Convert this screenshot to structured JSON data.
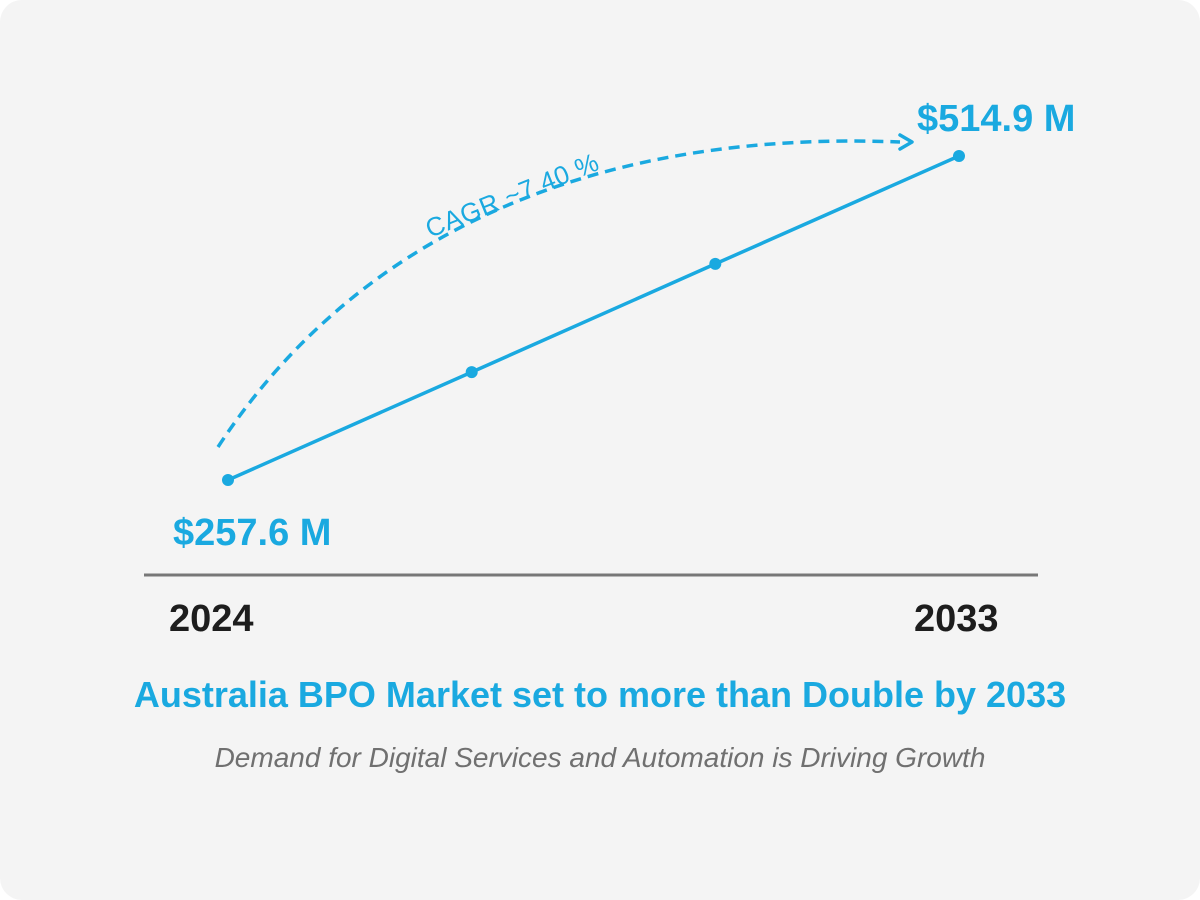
{
  "chart_data": {
    "type": "line",
    "title": "Australia BPO Market set to more than Double by 2033",
    "subtitle": "Demand for Digital Services and Automation is Driving Growth",
    "series": [
      {
        "x": [
          2024,
          2027,
          2030,
          2033
        ],
        "values": [
          257.6,
          343.3,
          429.2,
          514.9
        ]
      }
    ],
    "point_labels": {
      "start": "$257.6 M",
      "end": "$514.9 M"
    },
    "x_tick_labels": [
      "2024",
      "2033"
    ],
    "annotation": "CAGR ~7.40 %",
    "xlim": [
      2024,
      2033
    ],
    "ylim": [
      257.6,
      514.9
    ],
    "grid": false,
    "colors": {
      "accent": "#1aa9e0",
      "axis": "#777777",
      "year_text": "#1d1d1d",
      "subtitle_text": "#707070",
      "background": "#f4f4f4"
    }
  }
}
